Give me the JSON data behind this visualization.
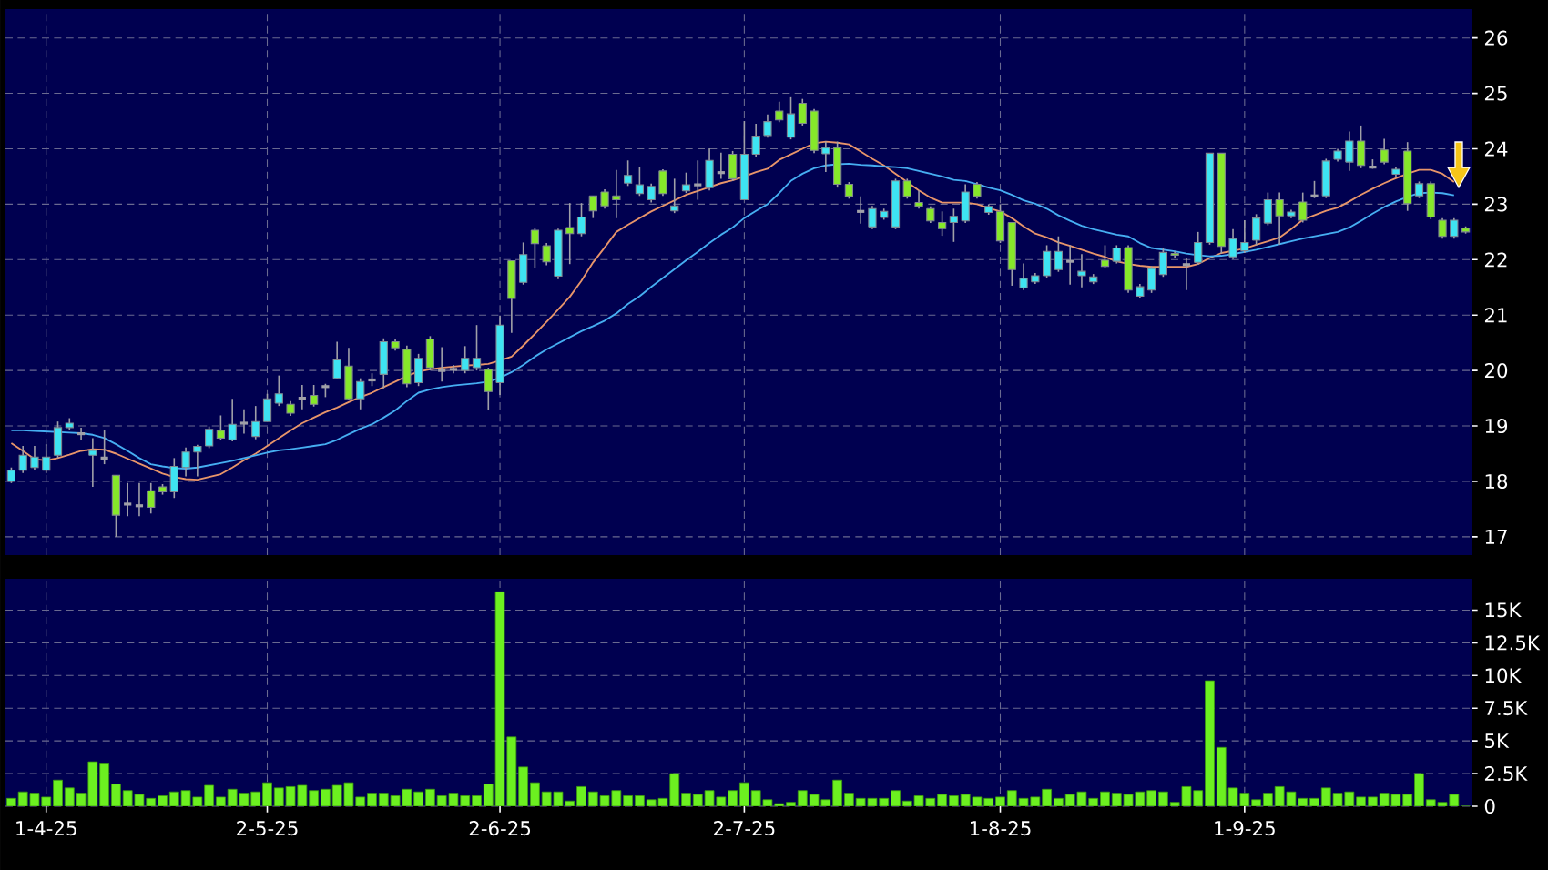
{
  "chart_data": [
    {
      "type": "candlestick",
      "categories": [
        null,
        null,
        null,
        null,
        null,
        null,
        null,
        null,
        null,
        null,
        null,
        null,
        null,
        null,
        null,
        null,
        null,
        null,
        null,
        null,
        null,
        null,
        null,
        null,
        null,
        null,
        null,
        null,
        null,
        null,
        null,
        null,
        null,
        null,
        null,
        null,
        null,
        null,
        null,
        null,
        null,
        null,
        null,
        null,
        null,
        null,
        null,
        null,
        null,
        null,
        null,
        null,
        null,
        null,
        null,
        null,
        null,
        null,
        null,
        null,
        null,
        null,
        null,
        null,
        null,
        null,
        null,
        null,
        null,
        null,
        null,
        null,
        null,
        null,
        null,
        null,
        null,
        null,
        null,
        null,
        null,
        null,
        null,
        null,
        null,
        null,
        null,
        null,
        null,
        null,
        null,
        null,
        null,
        null,
        null,
        null,
        null,
        null,
        null,
        null,
        null,
        null,
        null,
        null,
        null,
        null,
        null,
        null,
        null,
        null,
        null,
        null,
        null,
        null,
        null,
        null,
        null,
        null,
        null,
        null,
        null,
        null,
        null,
        null,
        null,
        null
      ],
      "ohlc": [
        [
          18.0,
          18.25,
          17.97,
          18.2
        ],
        [
          18.2,
          18.64,
          18.15,
          18.47
        ],
        [
          18.25,
          18.64,
          18.2,
          18.44
        ],
        [
          18.2,
          18.67,
          18.15,
          18.44
        ],
        [
          18.47,
          19.08,
          18.42,
          18.97
        ],
        [
          18.97,
          19.14,
          18.93,
          19.05
        ],
        [
          18.86,
          18.97,
          18.75,
          18.86
        ],
        [
          18.47,
          18.78,
          17.9,
          18.56
        ],
        [
          18.42,
          18.92,
          18.31,
          18.42
        ],
        [
          18.11,
          18.11,
          17.0,
          17.39
        ],
        [
          17.59,
          17.97,
          17.37,
          17.59
        ],
        [
          17.56,
          17.97,
          17.37,
          17.56
        ],
        [
          17.83,
          17.97,
          17.42,
          17.53
        ],
        [
          17.9,
          17.95,
          17.76,
          17.81
        ],
        [
          17.81,
          18.42,
          17.7,
          18.27
        ],
        [
          18.25,
          18.61,
          18.09,
          18.53
        ],
        [
          18.53,
          18.66,
          18.09,
          18.63
        ],
        [
          18.64,
          18.99,
          18.6,
          18.94
        ],
        [
          18.92,
          19.19,
          18.75,
          18.78
        ],
        [
          18.75,
          19.49,
          18.72,
          19.03
        ],
        [
          19.05,
          19.3,
          18.86,
          19.05
        ],
        [
          18.81,
          19.36,
          18.76,
          19.08
        ],
        [
          19.08,
          19.58,
          19.08,
          19.49
        ],
        [
          19.41,
          19.91,
          19.36,
          19.58
        ],
        [
          19.39,
          19.45,
          19.18,
          19.23
        ],
        [
          19.5,
          19.74,
          19.3,
          19.5
        ],
        [
          19.55,
          19.74,
          19.35,
          19.39
        ],
        [
          19.71,
          19.76,
          19.52,
          19.71
        ],
        [
          19.86,
          20.52,
          19.86,
          20.19
        ],
        [
          20.08,
          20.41,
          19.47,
          19.49
        ],
        [
          19.49,
          19.86,
          19.3,
          19.8
        ],
        [
          19.83,
          19.95,
          19.72,
          19.83
        ],
        [
          19.93,
          20.58,
          19.68,
          20.52
        ],
        [
          20.52,
          20.57,
          20.36,
          20.41
        ],
        [
          20.38,
          20.45,
          19.7,
          19.76
        ],
        [
          19.78,
          20.3,
          19.72,
          20.22
        ],
        [
          20.57,
          20.62,
          20.0,
          20.05
        ],
        [
          20.0,
          20.42,
          19.8,
          20.0
        ],
        [
          20.02,
          20.1,
          19.95,
          20.02
        ],
        [
          20.0,
          20.44,
          19.95,
          20.22
        ],
        [
          20.05,
          20.82,
          20.0,
          20.22
        ],
        [
          20.02,
          20.05,
          19.29,
          19.62
        ],
        [
          19.78,
          20.99,
          19.56,
          20.82
        ],
        [
          21.98,
          21.98,
          20.68,
          21.3
        ],
        [
          21.59,
          22.31,
          21.55,
          22.09
        ],
        [
          22.53,
          22.58,
          21.85,
          22.29
        ],
        [
          22.25,
          22.3,
          21.9,
          21.96
        ],
        [
          21.7,
          22.56,
          21.65,
          22.53
        ],
        [
          22.58,
          23.02,
          21.92,
          22.47
        ],
        [
          22.47,
          23.02,
          22.42,
          22.77
        ],
        [
          23.15,
          23.15,
          22.75,
          22.88
        ],
        [
          23.22,
          23.27,
          22.92,
          22.97
        ],
        [
          23.15,
          23.62,
          22.75,
          23.08
        ],
        [
          23.38,
          23.79,
          23.33,
          23.52
        ],
        [
          23.19,
          23.68,
          23.15,
          23.35
        ],
        [
          23.08,
          23.37,
          23.03,
          23.32
        ],
        [
          23.6,
          23.63,
          23.15,
          23.19
        ],
        [
          22.88,
          23.46,
          22.84,
          22.97
        ],
        [
          23.24,
          23.57,
          23.2,
          23.35
        ],
        [
          23.35,
          23.79,
          23.08,
          23.35
        ],
        [
          23.3,
          24.01,
          23.25,
          23.79
        ],
        [
          23.57,
          23.93,
          23.46,
          23.57
        ],
        [
          23.9,
          23.96,
          23.42,
          23.46
        ],
        [
          23.08,
          24.5,
          23.08,
          23.9
        ],
        [
          23.9,
          24.45,
          23.85,
          24.23
        ],
        [
          24.24,
          24.62,
          24.2,
          24.49
        ],
        [
          24.68,
          24.85,
          24.48,
          24.52
        ],
        [
          24.21,
          24.93,
          24.17,
          24.63
        ],
        [
          24.82,
          24.9,
          24.42,
          24.46
        ],
        [
          24.68,
          24.72,
          23.92,
          23.97
        ],
        [
          23.91,
          24.13,
          23.58,
          24.02
        ],
        [
          24.02,
          24.13,
          23.3,
          23.36
        ],
        [
          23.36,
          23.4,
          23.1,
          23.14
        ],
        [
          22.87,
          23.14,
          22.65,
          22.87
        ],
        [
          22.59,
          22.97,
          22.55,
          22.92
        ],
        [
          22.76,
          22.92,
          22.72,
          22.87
        ],
        [
          22.59,
          23.46,
          22.55,
          23.42
        ],
        [
          23.42,
          23.46,
          23.1,
          23.14
        ],
        [
          23.03,
          23.25,
          22.92,
          22.96
        ],
        [
          22.92,
          22.96,
          22.66,
          22.7
        ],
        [
          22.67,
          22.87,
          22.43,
          22.56
        ],
        [
          22.67,
          22.92,
          22.32,
          22.78
        ],
        [
          22.7,
          23.36,
          22.66,
          23.22
        ],
        [
          23.36,
          23.4,
          23.1,
          23.14
        ],
        [
          22.85,
          23.0,
          22.81,
          22.96
        ],
        [
          22.87,
          23.0,
          22.3,
          22.34
        ],
        [
          22.67,
          22.67,
          21.53,
          21.82
        ],
        [
          21.49,
          21.93,
          21.45,
          21.66
        ],
        [
          21.6,
          21.76,
          21.56,
          21.71
        ],
        [
          21.71,
          22.26,
          21.67,
          22.15
        ],
        [
          21.82,
          22.42,
          21.78,
          22.15
        ],
        [
          21.97,
          22.26,
          21.55,
          21.97
        ],
        [
          21.71,
          22.1,
          21.5,
          21.79
        ],
        [
          21.6,
          21.74,
          21.56,
          21.69
        ],
        [
          21.99,
          22.26,
          21.84,
          21.88
        ],
        [
          21.97,
          22.26,
          21.93,
          22.21
        ],
        [
          22.22,
          22.26,
          21.4,
          21.45
        ],
        [
          21.34,
          21.56,
          21.3,
          21.51
        ],
        [
          21.45,
          21.88,
          21.4,
          21.84
        ],
        [
          21.73,
          22.2,
          21.69,
          22.13
        ],
        [
          22.11,
          22.15,
          22.04,
          22.08
        ],
        [
          21.91,
          22.02,
          21.45,
          21.91
        ],
        [
          21.95,
          22.5,
          21.91,
          22.31
        ],
        [
          22.31,
          23.92,
          22.27,
          23.92
        ],
        [
          23.92,
          23.92,
          22.11,
          22.24
        ],
        [
          22.05,
          22.55,
          22.01,
          22.38
        ],
        [
          22.16,
          22.71,
          22.12,
          22.31
        ],
        [
          22.35,
          22.82,
          22.26,
          22.75
        ],
        [
          22.66,
          23.21,
          22.62,
          23.08
        ],
        [
          23.08,
          23.21,
          22.27,
          22.79
        ],
        [
          22.79,
          22.9,
          22.75,
          22.86
        ],
        [
          23.04,
          23.21,
          22.67,
          22.71
        ],
        [
          23.15,
          23.42,
          23.11,
          23.15
        ],
        [
          23.15,
          23.82,
          23.11,
          23.78
        ],
        [
          23.81,
          24.0,
          23.77,
          23.96
        ],
        [
          23.76,
          24.31,
          23.6,
          24.14
        ],
        [
          24.14,
          24.42,
          23.65,
          23.7
        ],
        [
          23.67,
          23.81,
          23.64,
          23.67
        ],
        [
          23.98,
          24.18,
          23.72,
          23.76
        ],
        [
          23.54,
          23.67,
          23.5,
          23.63
        ],
        [
          23.96,
          24.12,
          22.88,
          23.01
        ],
        [
          23.15,
          23.41,
          23.11,
          23.37
        ],
        [
          23.37,
          23.41,
          22.73,
          22.77
        ],
        [
          22.71,
          22.75,
          22.38,
          22.42
        ],
        [
          22.42,
          22.75,
          22.38,
          22.71
        ],
        [
          22.57,
          22.6,
          22.47,
          22.5
        ]
      ],
      "colors": [
        "#3ee4f2",
        "#3ee4f2",
        "#3ee4f2",
        "#3ee4f2",
        "#3ee4f2",
        "#3ee4f2",
        "#a0a0a8",
        "#3ee4f2",
        "#a0a0a8",
        "#86e82a",
        "#a0a0a8",
        "#a0a0a8",
        "#86e82a",
        "#86e82a",
        "#3ee4f2",
        "#3ee4f2",
        "#3ee4f2",
        "#3ee4f2",
        "#86e82a",
        "#3ee4f2",
        "#a0a0a8",
        "#3ee4f2",
        "#3ee4f2",
        "#3ee4f2",
        "#86e82a",
        "#a0a0a8",
        "#86e82a",
        "#a0a0a8",
        "#3ee4f2",
        "#86e82a",
        "#3ee4f2",
        "#a0a0a8",
        "#3ee4f2",
        "#86e82a",
        "#86e82a",
        "#3ee4f2",
        "#86e82a",
        "#a0a0a8",
        "#a0a0a8",
        "#3ee4f2",
        "#3ee4f2",
        "#86e82a",
        "#3ee4f2",
        "#86e82a",
        "#3ee4f2",
        "#86e82a",
        "#86e82a",
        "#3ee4f2",
        "#86e82a",
        "#3ee4f2",
        "#86e82a",
        "#86e82a",
        "#86e82a",
        "#3ee4f2",
        "#3ee4f2",
        "#3ee4f2",
        "#86e82a",
        "#3ee4f2",
        "#3ee4f2",
        "#a0a0a8",
        "#3ee4f2",
        "#a0a0a8",
        "#86e82a",
        "#3ee4f2",
        "#3ee4f2",
        "#3ee4f2",
        "#86e82a",
        "#3ee4f2",
        "#86e82a",
        "#86e82a",
        "#3ee4f2",
        "#86e82a",
        "#86e82a",
        "#a0a0a8",
        "#3ee4f2",
        "#3ee4f2",
        "#3ee4f2",
        "#86e82a",
        "#86e82a",
        "#86e82a",
        "#86e82a",
        "#3ee4f2",
        "#3ee4f2",
        "#86e82a",
        "#3ee4f2",
        "#86e82a",
        "#86e82a",
        "#3ee4f2",
        "#3ee4f2",
        "#3ee4f2",
        "#3ee4f2",
        "#a0a0a8",
        "#3ee4f2",
        "#3ee4f2",
        "#86e82a",
        "#3ee4f2",
        "#86e82a",
        "#3ee4f2",
        "#3ee4f2",
        "#3ee4f2",
        "#86e82a",
        "#a0a0a8",
        "#3ee4f2",
        "#3ee4f2",
        "#86e82a",
        "#3ee4f2",
        "#3ee4f2",
        "#3ee4f2",
        "#3ee4f2",
        "#86e82a",
        "#3ee4f2",
        "#86e82a",
        "#a0a0a8",
        "#3ee4f2",
        "#3ee4f2",
        "#3ee4f2",
        "#86e82a",
        "#a0a0a8",
        "#86e82a",
        "#3ee4f2",
        "#86e82a",
        "#3ee4f2",
        "#86e82a",
        "#86e82a",
        "#3ee4f2",
        "#86e82a"
      ],
      "series": [
        {
          "type": "line",
          "color": "#e8956a",
          "values": [
            18.69,
            18.55,
            18.4,
            18.38,
            18.42,
            18.48,
            18.55,
            18.58,
            18.57,
            18.5,
            18.41,
            18.32,
            18.23,
            18.14,
            18.08,
            18.04,
            18.03,
            18.08,
            18.13,
            18.25,
            18.38,
            18.5,
            18.64,
            18.78,
            18.92,
            19.05,
            19.15,
            19.25,
            19.33,
            19.43,
            19.52,
            19.6,
            19.7,
            19.8,
            19.9,
            19.98,
            20.02,
            20.05,
            20.07,
            20.09,
            20.1,
            20.12,
            20.18,
            20.25,
            20.45,
            20.66,
            20.88,
            21.1,
            21.33,
            21.62,
            21.95,
            22.22,
            22.5,
            22.63,
            22.75,
            22.87,
            22.97,
            23.07,
            23.17,
            23.24,
            23.31,
            23.38,
            23.43,
            23.5,
            23.58,
            23.64,
            23.8,
            23.9,
            24.0,
            24.1,
            24.13,
            24.11,
            24.08,
            23.95,
            23.82,
            23.7,
            23.55,
            23.4,
            23.25,
            23.12,
            23.03,
            23.03,
            23.03,
            23.0,
            22.93,
            22.87,
            22.75,
            22.6,
            22.47,
            22.4,
            22.31,
            22.25,
            22.18,
            22.11,
            22.05,
            21.97,
            21.92,
            21.89,
            21.87,
            21.87,
            21.87,
            21.87,
            21.92,
            22.03,
            22.12,
            22.16,
            22.2,
            22.27,
            22.33,
            22.4,
            22.55,
            22.72,
            22.8,
            22.88,
            22.94,
            23.05,
            23.17,
            23.28,
            23.38,
            23.47,
            23.55,
            23.62,
            23.62,
            23.55,
            23.4,
            null
          ]
        },
        {
          "type": "line",
          "color": "#46aef2",
          "values": [
            18.92,
            18.92,
            18.91,
            18.9,
            18.89,
            18.88,
            18.87,
            18.84,
            18.78,
            18.67,
            18.55,
            18.42,
            18.31,
            18.27,
            18.24,
            18.23,
            18.25,
            18.29,
            18.33,
            18.37,
            18.42,
            18.47,
            18.52,
            18.56,
            18.58,
            18.61,
            18.64,
            18.67,
            18.75,
            18.85,
            18.95,
            19.03,
            19.15,
            19.28,
            19.45,
            19.6,
            19.66,
            19.7,
            19.73,
            19.75,
            19.77,
            19.8,
            19.87,
            19.97,
            20.1,
            20.25,
            20.38,
            20.49,
            20.6,
            20.71,
            20.8,
            20.9,
            21.03,
            21.2,
            21.34,
            21.51,
            21.67,
            21.83,
            21.99,
            22.14,
            22.3,
            22.45,
            22.58,
            22.75,
            22.88,
            23.0,
            23.2,
            23.42,
            23.55,
            23.65,
            23.7,
            23.72,
            23.73,
            23.71,
            23.7,
            23.68,
            23.67,
            23.65,
            23.6,
            23.55,
            23.5,
            23.44,
            23.42,
            23.36,
            23.3,
            23.25,
            23.17,
            23.07,
            23.01,
            22.92,
            22.8,
            22.7,
            22.61,
            22.55,
            22.5,
            22.45,
            22.42,
            22.3,
            22.21,
            22.18,
            22.15,
            22.11,
            22.08,
            22.06,
            22.07,
            22.1,
            22.14,
            22.18,
            22.23,
            22.28,
            22.33,
            22.38,
            22.42,
            22.46,
            22.5,
            22.58,
            22.7,
            22.83,
            22.95,
            23.05,
            23.13,
            23.2,
            23.21,
            23.2,
            23.16,
            null
          ]
        }
      ],
      "ylim": [
        16.67,
        26.52
      ],
      "yticks": [
        17,
        18,
        19,
        20,
        21,
        22,
        23,
        24,
        25,
        26
      ],
      "grid": true,
      "tick_labels": "y"
    },
    {
      "type": "bar",
      "categories": [
        null,
        null,
        null,
        "1-4-25",
        null,
        null,
        null,
        null,
        null,
        null,
        null,
        null,
        null,
        null,
        null,
        null,
        null,
        null,
        null,
        null,
        null,
        null,
        "2-5-25",
        null,
        null,
        null,
        null,
        null,
        null,
        null,
        null,
        null,
        null,
        null,
        null,
        null,
        null,
        null,
        null,
        null,
        null,
        null,
        "2-6-25",
        null,
        null,
        null,
        null,
        null,
        null,
        null,
        null,
        null,
        null,
        null,
        null,
        null,
        null,
        null,
        null,
        null,
        null,
        null,
        null,
        "2-7-25",
        null,
        null,
        null,
        null,
        null,
        null,
        null,
        null,
        null,
        null,
        null,
        null,
        null,
        null,
        null,
        null,
        null,
        null,
        null,
        null,
        null,
        "1-8-25",
        null,
        null,
        null,
        null,
        null,
        null,
        null,
        null,
        null,
        null,
        null,
        null,
        null,
        null,
        null,
        null,
        null,
        null,
        null,
        null,
        "1-9-25",
        null,
        null,
        null,
        null,
        null,
        null,
        null,
        null,
        null,
        null,
        null,
        null,
        null,
        null,
        null,
        null,
        null,
        null,
        null
      ],
      "values": [
        600,
        1100,
        1000,
        700,
        2000,
        1400,
        1000,
        3400,
        3300,
        1700,
        1200,
        900,
        600,
        800,
        1100,
        1200,
        700,
        1600,
        700,
        1300,
        1000,
        1100,
        1800,
        1400,
        1500,
        1600,
        1200,
        1300,
        1600,
        1800,
        700,
        1000,
        1000,
        800,
        1300,
        1100,
        1300,
        800,
        1000,
        800,
        800,
        1700,
        16400,
        5300,
        3000,
        1800,
        1100,
        1100,
        400,
        1500,
        1100,
        800,
        1200,
        800,
        800,
        500,
        600,
        2500,
        1000,
        900,
        1200,
        700,
        1200,
        1800,
        1200,
        500,
        200,
        300,
        1200,
        900,
        500,
        2000,
        1000,
        600,
        600,
        600,
        1200,
        400,
        800,
        600,
        900,
        800,
        900,
        700,
        600,
        700,
        1200,
        600,
        700,
        1300,
        600,
        900,
        1100,
        600,
        1100,
        1000,
        900,
        1100,
        1200,
        1100,
        300,
        1500,
        1200,
        9600,
        4500,
        1400,
        1000,
        500,
        1000,
        1500,
        1100,
        600,
        600,
        1400,
        1000,
        1100,
        700,
        700,
        1000,
        900,
        900,
        2500,
        500,
        300,
        900,
        0
      ],
      "color": "#6cf020",
      "ylim": [
        0,
        17400
      ],
      "yticks": [
        0,
        {
          "value": 2500,
          "label": "2.5K"
        },
        {
          "value": 5000,
          "label": "5K"
        },
        {
          "value": 7500,
          "label": "7.5K"
        },
        {
          "value": 10000,
          "label": "10K"
        },
        {
          "value": 12500,
          "label": "12.5K"
        },
        {
          "value": 15000,
          "label": "15K"
        }
      ],
      "grid": true
    }
  ]
}
